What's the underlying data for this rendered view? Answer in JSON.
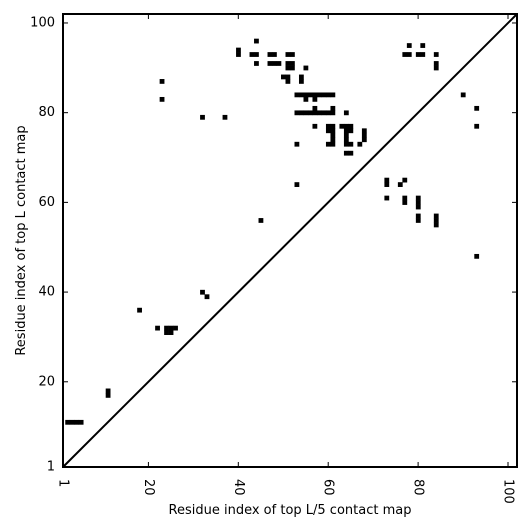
{
  "chart_data": {
    "type": "scatter",
    "title": "",
    "xlabel": "Residue index of top L/5 contact map",
    "ylabel": "Residue index of top L contact map",
    "xlim": [
      1,
      102
    ],
    "ylim": [
      1,
      102
    ],
    "x_ticks": [
      1,
      20,
      40,
      60,
      80,
      100
    ],
    "y_ticks": [
      1,
      20,
      40,
      60,
      80,
      100
    ],
    "x_tick_labels": [
      "1",
      "20",
      "40",
      "60",
      "80",
      "100"
    ],
    "y_tick_labels": [
      "1",
      "20",
      "40",
      "60",
      "80",
      "100"
    ],
    "x_tick_label_rotation": 90,
    "grid": false,
    "marker_color": "#000000",
    "diagonal": {
      "from": [
        1,
        1
      ],
      "to": [
        102,
        102
      ]
    },
    "points": [
      [
        2,
        11
      ],
      [
        3,
        11
      ],
      [
        4,
        11
      ],
      [
        5,
        11
      ],
      [
        11,
        17
      ],
      [
        11,
        18
      ],
      [
        18,
        36
      ],
      [
        22,
        32
      ],
      [
        24,
        31
      ],
      [
        25,
        31
      ],
      [
        24,
        32
      ],
      [
        25,
        32
      ],
      [
        26,
        32
      ],
      [
        32,
        40
      ],
      [
        33,
        39
      ],
      [
        23,
        83
      ],
      [
        23,
        87
      ],
      [
        32,
        79
      ],
      [
        37,
        79
      ],
      [
        40,
        93
      ],
      [
        40,
        94
      ],
      [
        43,
        93
      ],
      [
        44,
        93
      ],
      [
        44,
        96
      ],
      [
        44,
        91
      ],
      [
        45,
        56
      ],
      [
        47,
        93
      ],
      [
        48,
        93
      ],
      [
        47,
        91
      ],
      [
        48,
        91
      ],
      [
        49,
        91
      ],
      [
        50,
        88
      ],
      [
        51,
        88
      ],
      [
        51,
        87
      ],
      [
        51,
        91
      ],
      [
        52,
        91
      ],
      [
        51,
        90
      ],
      [
        52,
        90
      ],
      [
        51,
        93
      ],
      [
        52,
        93
      ],
      [
        54,
        88
      ],
      [
        54,
        87
      ],
      [
        53,
        64
      ],
      [
        53,
        73
      ],
      [
        55,
        90
      ],
      [
        55,
        83
      ],
      [
        53,
        84
      ],
      [
        54,
        84
      ],
      [
        55,
        84
      ],
      [
        56,
        84
      ],
      [
        57,
        84
      ],
      [
        58,
        84
      ],
      [
        59,
        84
      ],
      [
        60,
        84
      ],
      [
        61,
        84
      ],
      [
        57,
        83
      ],
      [
        57,
        81
      ],
      [
        57,
        77
      ],
      [
        53,
        80
      ],
      [
        54,
        80
      ],
      [
        55,
        80
      ],
      [
        56,
        80
      ],
      [
        57,
        80
      ],
      [
        58,
        80
      ],
      [
        59,
        80
      ],
      [
        60,
        80
      ],
      [
        61,
        80
      ],
      [
        61,
        81
      ],
      [
        60,
        77
      ],
      [
        61,
        77
      ],
      [
        60,
        76
      ],
      [
        61,
        76
      ],
      [
        61,
        75
      ],
      [
        61,
        74
      ],
      [
        60,
        73
      ],
      [
        61,
        73
      ],
      [
        64,
        80
      ],
      [
        63,
        77
      ],
      [
        64,
        77
      ],
      [
        65,
        77
      ],
      [
        64,
        76
      ],
      [
        65,
        76
      ],
      [
        64,
        75
      ],
      [
        64,
        74
      ],
      [
        64,
        73
      ],
      [
        65,
        73
      ],
      [
        64,
        71
      ],
      [
        65,
        71
      ],
      [
        67,
        73
      ],
      [
        68,
        76
      ],
      [
        68,
        75
      ],
      [
        68,
        74
      ],
      [
        73,
        65
      ],
      [
        73,
        64
      ],
      [
        73,
        61
      ],
      [
        76,
        64
      ],
      [
        77,
        65
      ],
      [
        77,
        61
      ],
      [
        77,
        60
      ],
      [
        78,
        95
      ],
      [
        78,
        93
      ],
      [
        77,
        93
      ],
      [
        80,
        93
      ],
      [
        81,
        93
      ],
      [
        81,
        95
      ],
      [
        80,
        61
      ],
      [
        80,
        60
      ],
      [
        80,
        59
      ],
      [
        80,
        57
      ],
      [
        80,
        56
      ],
      [
        84,
        93
      ],
      [
        84,
        91
      ],
      [
        84,
        90
      ],
      [
        84,
        57
      ],
      [
        84,
        56
      ],
      [
        84,
        55
      ],
      [
        90,
        84
      ],
      [
        93,
        81
      ],
      [
        93,
        77
      ],
      [
        93,
        48
      ]
    ]
  }
}
